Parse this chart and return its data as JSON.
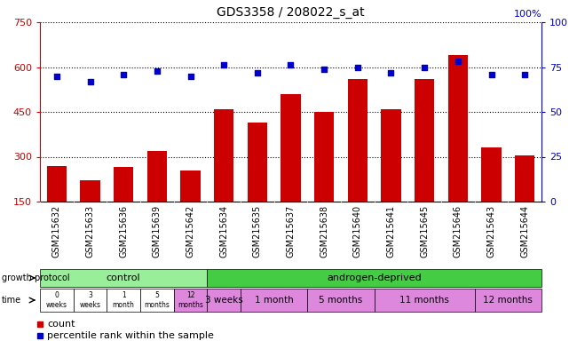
{
  "title": "GDS3358 / 208022_s_at",
  "samples": [
    "GSM215632",
    "GSM215633",
    "GSM215636",
    "GSM215639",
    "GSM215642",
    "GSM215634",
    "GSM215635",
    "GSM215637",
    "GSM215638",
    "GSM215640",
    "GSM215641",
    "GSM215645",
    "GSM215646",
    "GSM215643",
    "GSM215644"
  ],
  "counts": [
    270,
    220,
    265,
    320,
    255,
    460,
    415,
    510,
    450,
    560,
    460,
    560,
    640,
    330,
    305
  ],
  "percentiles": [
    70,
    67,
    71,
    73,
    70,
    76,
    72,
    76,
    74,
    75,
    72,
    75,
    78,
    71,
    71
  ],
  "ylim_left": [
    150,
    750
  ],
  "ylim_right": [
    0,
    100
  ],
  "yticks_left": [
    150,
    300,
    450,
    600,
    750
  ],
  "yticks_right": [
    0,
    25,
    50,
    75,
    100
  ],
  "bar_color": "#cc0000",
  "dot_color": "#0000cc",
  "bg_color": "#ffffff",
  "xticklabel_bg": "#dddddd",
  "control_color": "#99ee99",
  "androgen_color": "#44cc44",
  "time_control_colors": [
    "#ffffff",
    "#ffffff",
    "#ffffff",
    "#ffffff",
    "#dd88dd"
  ],
  "time_androgen_colors": [
    "#dd88dd",
    "#dd88dd",
    "#dd88dd",
    "#dd88dd",
    "#dd88dd"
  ],
  "control_times": [
    "0\nweeks",
    "3\nweeks",
    "1\nmonth",
    "5\nmonths",
    "12\nmonths"
  ],
  "androgen_times": [
    "3 weeks",
    "1 month",
    "5 months",
    "11 months",
    "12 months"
  ],
  "androgen_group_sizes": [
    1,
    2,
    2,
    3,
    2
  ],
  "control_sample_count": 5,
  "androgen_sample_count": 10,
  "legend_items": [
    [
      "count",
      "#cc0000"
    ],
    [
      "percentile rank within the sample",
      "#0000cc"
    ]
  ]
}
